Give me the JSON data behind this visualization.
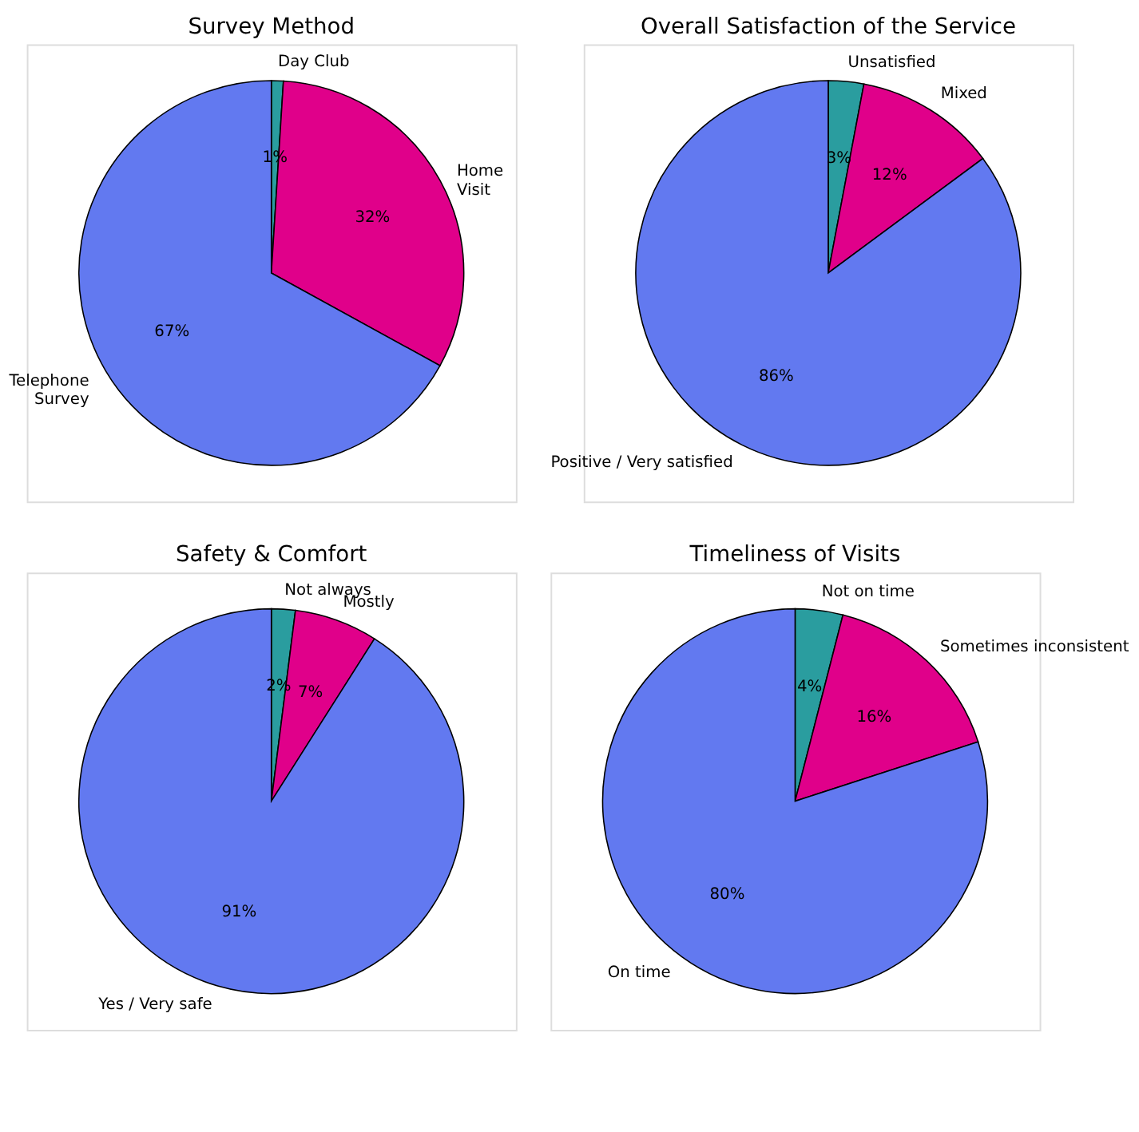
{
  "chart_data": [
    {
      "type": "pie",
      "title": "Survey Method",
      "categories": [
        "Day Club",
        "Home\nVisit",
        "Telephone\nSurvey"
      ],
      "values": [
        1,
        32,
        67
      ],
      "value_labels": [
        "1%",
        "32%",
        "67%"
      ],
      "colors": [
        "#2a9d9f",
        "#e0008a",
        "#6279f0"
      ],
      "legend": false
    },
    {
      "type": "pie",
      "title": "Overall Satisfaction of the Service",
      "categories": [
        "Unsatisfied",
        "Mixed",
        "Positive / Very satisfied"
      ],
      "values": [
        3,
        12,
        86
      ],
      "value_labels": [
        "3%",
        "12%",
        "86%"
      ],
      "colors": [
        "#2a9d9f",
        "#e0008a",
        "#6279f0"
      ],
      "legend": false
    },
    {
      "type": "pie",
      "title": "Safety & Comfort",
      "categories": [
        "Not always",
        "Mostly",
        "Yes / Very safe"
      ],
      "values": [
        2,
        7,
        91
      ],
      "value_labels": [
        "2%",
        "7%",
        "91%"
      ],
      "colors": [
        "#2a9d9f",
        "#e0008a",
        "#6279f0"
      ],
      "legend": false
    },
    {
      "type": "pie",
      "title": "Timeliness of Visits",
      "categories": [
        "Not on time",
        "Sometimes inconsistent",
        "On time"
      ],
      "values": [
        4,
        16,
        80
      ],
      "value_labels": [
        "4%",
        "16%",
        "80%"
      ],
      "colors": [
        "#2a9d9f",
        "#e0008a",
        "#6279f0"
      ],
      "legend": false
    }
  ]
}
